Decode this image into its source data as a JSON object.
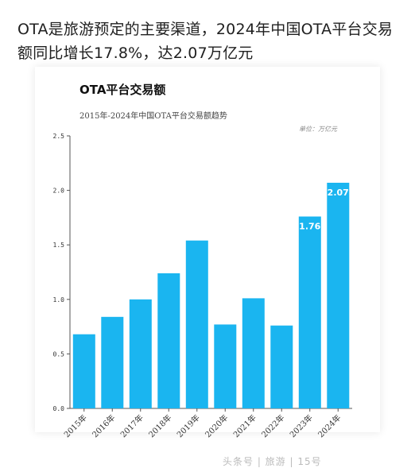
{
  "headline": "OTA是旅游预定的主要渠道，2024年中国OTA平台交易额同比增长17.8%，达2.07万亿元",
  "colors": {
    "bar": "#1AB5F0",
    "axis": "#555555",
    "card_shadow": "#e6e6e6"
  },
  "footer_text": "头条号 | 旅游 | 15号",
  "chart_data": {
    "type": "bar",
    "title": "OTA平台交易额",
    "subtitle": "2015年-2024年中国OTA平台交易额趋势",
    "unit": "单位：万亿元",
    "categories": [
      "2015年",
      "2016年",
      "2017年",
      "2018年",
      "2019年",
      "2020年",
      "2021年",
      "2022年",
      "2023年",
      "2024年"
    ],
    "values": [
      0.68,
      0.84,
      1.0,
      1.24,
      1.54,
      0.77,
      1.01,
      0.76,
      1.76,
      2.07
    ],
    "data_labels": [
      {
        "index": 8,
        "text": "1.76"
      },
      {
        "index": 9,
        "text": "2.07"
      }
    ],
    "yticks": [
      "0.0",
      "0.5",
      "1.0",
      "1.5",
      "2.0",
      "2.5"
    ],
    "ytick_values": [
      0,
      0.5,
      1.0,
      1.5,
      2.0,
      2.5
    ],
    "ylim": [
      0,
      2.5
    ],
    "grid": false,
    "legend": "none"
  }
}
